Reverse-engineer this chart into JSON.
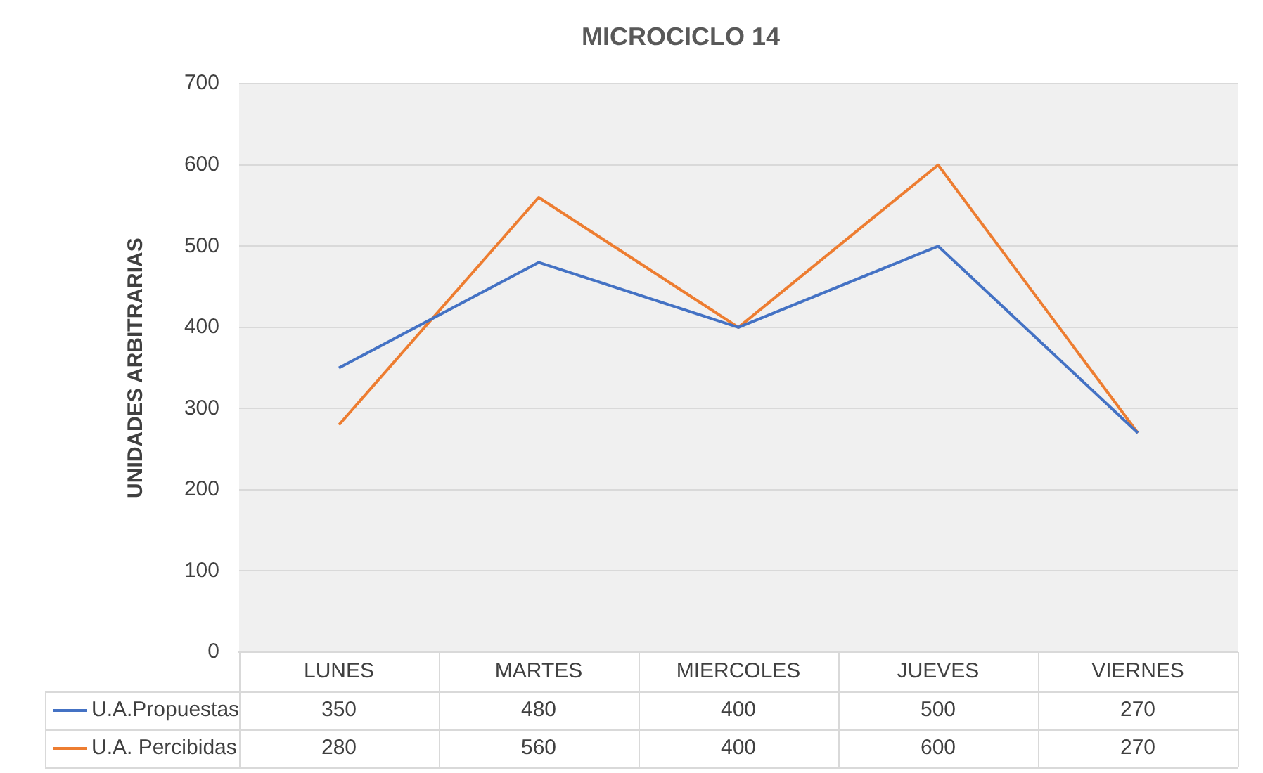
{
  "chart_data": {
    "type": "line",
    "title": "MICROCICLO 14",
    "ylabel": "UNIDADES ARBITRARIAS",
    "categories": [
      "LUNES",
      "MARTES",
      "MIERCOLES",
      "JUEVES",
      "VIERNES"
    ],
    "series": [
      {
        "name": "U.A.Propuestas",
        "color": "#4472c4",
        "values": [
          350,
          480,
          400,
          500,
          270
        ]
      },
      {
        "name": "U.A. Percibidas",
        "color": "#ed7d31",
        "values": [
          280,
          560,
          400,
          600,
          270
        ]
      }
    ],
    "ylim": [
      0,
      700
    ],
    "yticks": [
      0,
      100,
      200,
      300,
      400,
      500,
      600,
      700
    ],
    "grid": "y",
    "legend": "bottom",
    "data_labels": true,
    "marker": "none",
    "line_style": "solid"
  }
}
